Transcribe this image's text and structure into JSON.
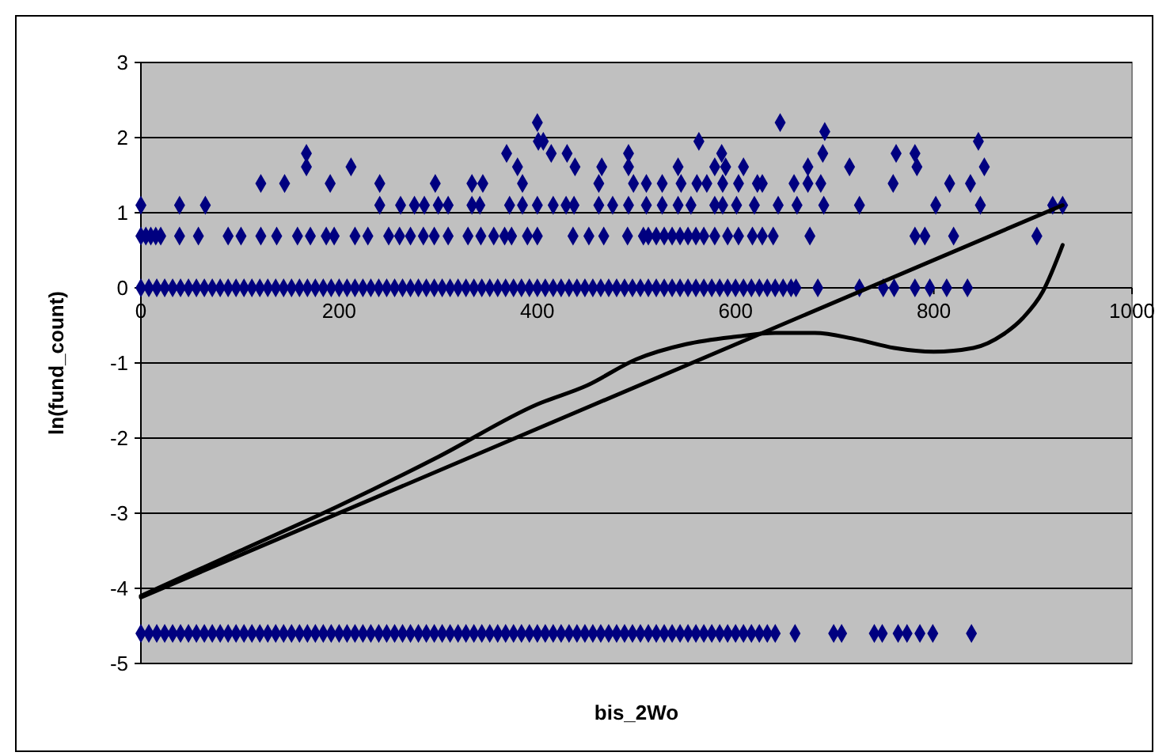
{
  "chart_data": {
    "type": "scatter",
    "xlabel": "bis_2Wo",
    "ylabel": "ln(fund_count)",
    "xlim": [
      0,
      1000
    ],
    "xticks": [
      0,
      200,
      400,
      600,
      800,
      1000
    ],
    "ylim": [
      -5,
      3
    ],
    "yticks": [
      -5,
      -4,
      -3,
      -2,
      -1,
      0,
      1,
      2,
      3
    ],
    "grid": "y",
    "marker": "diamond",
    "series": [
      {
        "color": "#000080",
        "x": [
          0,
          39,
          65,
          241,
          262,
          276,
          286,
          300,
          310,
          334,
          342,
          372,
          385,
          400,
          416,
          429,
          437,
          462,
          476,
          492,
          510,
          526,
          542,
          555,
          579,
          587,
          601,
          619,
          643,
          662,
          689,
          725,
          802,
          847,
          920,
          930
        ],
        "values": [
          1.1,
          1.1,
          1.1,
          1.1,
          1.1,
          1.1,
          1.1,
          1.1,
          1.1,
          1.1,
          1.1,
          1.1,
          1.1,
          1.1,
          1.1,
          1.1,
          1.1,
          1.1,
          1.1,
          1.1,
          1.1,
          1.1,
          1.1,
          1.1,
          1.1,
          1.1,
          1.1,
          1.1,
          1.1,
          1.1,
          1.1,
          1.1,
          1.1,
          1.1,
          1.1,
          1.1
        ]
      },
      {
        "color": "#000080",
        "x": [
          121,
          145,
          191,
          241,
          297,
          334,
          345,
          385,
          462,
          497,
          510,
          526,
          545,
          561,
          571,
          587,
          603,
          622,
          627,
          659,
          673,
          686,
          759,
          816,
          837
        ],
        "values": [
          1.39,
          1.39,
          1.39,
          1.39,
          1.39,
          1.39,
          1.39,
          1.39,
          1.39,
          1.39,
          1.39,
          1.39,
          1.39,
          1.39,
          1.39,
          1.39,
          1.39,
          1.39,
          1.39,
          1.39,
          1.39,
          1.39,
          1.39,
          1.39,
          1.39
        ]
      },
      {
        "color": "#000080",
        "x": [
          167,
          212,
          380,
          438,
          465,
          492,
          542,
          579,
          590,
          608,
          673,
          715,
          783,
          851
        ],
        "values": [
          1.61,
          1.61,
          1.61,
          1.61,
          1.61,
          1.61,
          1.61,
          1.61,
          1.61,
          1.61,
          1.61,
          1.61,
          1.61,
          1.61
        ]
      },
      {
        "color": "#000080",
        "x": [
          167,
          369,
          414,
          430,
          492,
          586,
          688,
          762,
          781,
          401,
          406,
          563,
          845,
          690,
          400,
          645
        ],
        "values": [
          1.79,
          1.79,
          1.79,
          1.79,
          1.79,
          1.79,
          1.79,
          1.79,
          1.79,
          1.95,
          1.95,
          1.95,
          1.95,
          2.08,
          2.2,
          2.2
        ]
      },
      {
        "color": "#000080",
        "x": [
          0,
          5,
          10,
          15,
          20,
          39,
          58,
          88,
          101,
          121,
          137,
          158,
          171,
          187,
          195,
          216,
          229,
          250,
          261,
          272,
          285,
          296,
          310,
          330,
          343,
          356,
          367,
          374,
          390,
          400,
          436,
          452,
          467,
          491,
          507,
          512,
          520,
          528,
          536,
          544,
          552,
          560,
          568,
          579,
          592,
          603,
          617,
          627,
          638,
          675,
          781,
          791,
          820,
          904
        ],
        "values": [
          0.69,
          0.69,
          0.69,
          0.69,
          0.69,
          0.69,
          0.69,
          0.69,
          0.69,
          0.69,
          0.69,
          0.69,
          0.69,
          0.69,
          0.69,
          0.69,
          0.69,
          0.69,
          0.69,
          0.69,
          0.69,
          0.69,
          0.69,
          0.69,
          0.69,
          0.69,
          0.69,
          0.69,
          0.69,
          0.69,
          0.69,
          0.69,
          0.69,
          0.69,
          0.69,
          0.69,
          0.69,
          0.69,
          0.69,
          0.69,
          0.69,
          0.69,
          0.69,
          0.69,
          0.69,
          0.69,
          0.69,
          0.69,
          0.69,
          0.69,
          0.69,
          0.69,
          0.69,
          0.69
        ]
      },
      {
        "color": "#000080",
        "x": [
          0,
          8,
          16,
          24,
          32,
          40,
          48,
          56,
          64,
          72,
          80,
          88,
          96,
          104,
          112,
          120,
          128,
          136,
          144,
          152,
          160,
          168,
          176,
          184,
          192,
          200,
          208,
          216,
          224,
          232,
          240,
          248,
          256,
          264,
          272,
          280,
          288,
          296,
          304,
          312,
          320,
          328,
          336,
          344,
          352,
          360,
          368,
          376,
          384,
          392,
          400,
          408,
          416,
          424,
          432,
          440,
          448,
          456,
          464,
          472,
          480,
          488,
          496,
          504,
          512,
          520,
          528,
          536,
          544,
          552,
          560,
          568,
          576,
          584,
          592,
          600,
          608,
          616,
          624,
          632,
          640,
          648,
          656,
          661,
          683,
          725,
          749,
          760,
          781,
          796,
          813,
          834
        ],
        "values": [
          0,
          0,
          0,
          0,
          0,
          0,
          0,
          0,
          0,
          0,
          0,
          0,
          0,
          0,
          0,
          0,
          0,
          0,
          0,
          0,
          0,
          0,
          0,
          0,
          0,
          0,
          0,
          0,
          0,
          0,
          0,
          0,
          0,
          0,
          0,
          0,
          0,
          0,
          0,
          0,
          0,
          0,
          0,
          0,
          0,
          0,
          0,
          0,
          0,
          0,
          0,
          0,
          0,
          0,
          0,
          0,
          0,
          0,
          0,
          0,
          0,
          0,
          0,
          0,
          0,
          0,
          0,
          0,
          0,
          0,
          0,
          0,
          0,
          0,
          0,
          0,
          0,
          0,
          0,
          0,
          0,
          0,
          0,
          0,
          0,
          0,
          0,
          0,
          0,
          0,
          0,
          0
        ]
      },
      {
        "color": "#000080",
        "x": [
          0,
          8,
          16,
          24,
          32,
          40,
          48,
          56,
          64,
          72,
          80,
          88,
          96,
          104,
          112,
          120,
          128,
          136,
          144,
          152,
          160,
          168,
          176,
          184,
          192,
          200,
          208,
          216,
          224,
          232,
          240,
          248,
          256,
          264,
          272,
          280,
          288,
          296,
          304,
          312,
          320,
          328,
          336,
          344,
          352,
          360,
          368,
          376,
          384,
          392,
          400,
          408,
          416,
          424,
          432,
          440,
          448,
          456,
          464,
          472,
          480,
          488,
          496,
          504,
          512,
          520,
          528,
          536,
          544,
          552,
          560,
          568,
          576,
          584,
          592,
          600,
          608,
          616,
          624,
          632,
          640,
          660,
          699,
          707,
          740,
          748,
          764,
          773,
          786,
          799,
          838
        ],
        "values": [
          -4.6,
          -4.6,
          -4.6,
          -4.6,
          -4.6,
          -4.6,
          -4.6,
          -4.6,
          -4.6,
          -4.6,
          -4.6,
          -4.6,
          -4.6,
          -4.6,
          -4.6,
          -4.6,
          -4.6,
          -4.6,
          -4.6,
          -4.6,
          -4.6,
          -4.6,
          -4.6,
          -4.6,
          -4.6,
          -4.6,
          -4.6,
          -4.6,
          -4.6,
          -4.6,
          -4.6,
          -4.6,
          -4.6,
          -4.6,
          -4.6,
          -4.6,
          -4.6,
          -4.6,
          -4.6,
          -4.6,
          -4.6,
          -4.6,
          -4.6,
          -4.6,
          -4.6,
          -4.6,
          -4.6,
          -4.6,
          -4.6,
          -4.6,
          -4.6,
          -4.6,
          -4.6,
          -4.6,
          -4.6,
          -4.6,
          -4.6,
          -4.6,
          -4.6,
          -4.6,
          -4.6,
          -4.6,
          -4.6,
          -4.6,
          -4.6,
          -4.6,
          -4.6,
          -4.6,
          -4.6,
          -4.6,
          -4.6,
          -4.6,
          -4.6,
          -4.6,
          -4.6,
          -4.6,
          -4.6,
          -4.6,
          -4.6,
          -4.6,
          -4.6,
          -4.6,
          -4.6,
          -4.6,
          -4.6,
          -4.6,
          -4.6,
          -4.6,
          -4.6,
          -4.6,
          -4.6
        ]
      },
      {
        "type": "line",
        "marker": "none",
        "color": "#000000",
        "x": [
          0,
          930
        ],
        "values": [
          -4.12,
          1.1
        ]
      },
      {
        "type": "line",
        "marker": "none",
        "color": "#000000",
        "x": [
          0,
          100,
          200,
          300,
          400,
          450,
          500,
          550,
          600,
          640,
          680,
          720,
          760,
          800,
          840,
          870,
          890,
          910,
          930
        ],
        "values": [
          -4.1,
          -3.5,
          -2.9,
          -2.25,
          -1.55,
          -1.3,
          -0.95,
          -0.75,
          -0.65,
          -0.6,
          -0.6,
          -0.68,
          -0.8,
          -0.85,
          -0.8,
          -0.62,
          -0.4,
          -0.05,
          0.57
        ]
      }
    ]
  }
}
